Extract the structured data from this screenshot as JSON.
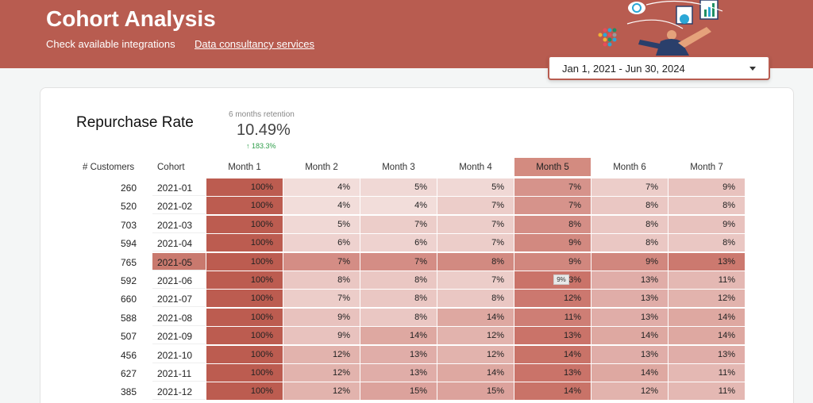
{
  "header": {
    "title": "Cohort Analysis",
    "links": [
      "Check available integrations",
      "Data consultancy services"
    ]
  },
  "date_range": {
    "value": "Jan 1, 2021 - Jun 30, 2024"
  },
  "kpi": {
    "title": "Repurchase Rate",
    "label": "6 months retention",
    "value": "10.49%",
    "delta": "183.3%"
  },
  "table": {
    "customers_header": "# Customers",
    "cohort_header": "Cohort",
    "months": [
      "Month 1",
      "Month 2",
      "Month 3",
      "Month 4",
      "Month 5",
      "Month 6",
      "Month 7"
    ],
    "highlight_column": 4,
    "highlight_row": 4,
    "rows": [
      {
        "customers": "260",
        "cohort": "2021-01",
        "values": [
          "100%",
          "4%",
          "5%",
          "5%",
          "7%",
          "7%",
          "9%"
        ]
      },
      {
        "customers": "520",
        "cohort": "2021-02",
        "values": [
          "100%",
          "4%",
          "4%",
          "7%",
          "7%",
          "8%",
          "8%"
        ]
      },
      {
        "customers": "703",
        "cohort": "2021-03",
        "values": [
          "100%",
          "5%",
          "7%",
          "7%",
          "8%",
          "8%",
          "9%"
        ]
      },
      {
        "customers": "594",
        "cohort": "2021-04",
        "values": [
          "100%",
          "6%",
          "6%",
          "7%",
          "9%",
          "8%",
          "8%"
        ]
      },
      {
        "customers": "765",
        "cohort": "2021-05",
        "values": [
          "100%",
          "7%",
          "7%",
          "8%",
          "9%",
          "9%",
          "13%"
        ]
      },
      {
        "customers": "592",
        "cohort": "2021-06",
        "values": [
          "100%",
          "8%",
          "8%",
          "7%",
          "13%",
          "13%",
          "11%"
        ]
      },
      {
        "customers": "660",
        "cohort": "2021-07",
        "values": [
          "100%",
          "7%",
          "8%",
          "8%",
          "12%",
          "13%",
          "12%"
        ]
      },
      {
        "customers": "588",
        "cohort": "2021-08",
        "values": [
          "100%",
          "9%",
          "8%",
          "14%",
          "11%",
          "13%",
          "14%"
        ]
      },
      {
        "customers": "507",
        "cohort": "2021-09",
        "values": [
          "100%",
          "9%",
          "14%",
          "12%",
          "13%",
          "14%",
          "14%"
        ]
      },
      {
        "customers": "456",
        "cohort": "2021-10",
        "values": [
          "100%",
          "12%",
          "13%",
          "12%",
          "14%",
          "13%",
          "13%"
        ]
      },
      {
        "customers": "627",
        "cohort": "2021-11",
        "values": [
          "100%",
          "12%",
          "13%",
          "14%",
          "13%",
          "14%",
          "11%"
        ]
      },
      {
        "customers": "385",
        "cohort": "2021-12",
        "values": [
          "100%",
          "12%",
          "15%",
          "15%",
          "14%",
          "12%",
          "11%"
        ]
      }
    ],
    "tooltip": "9%"
  },
  "colors": {
    "brand": "#b85c50",
    "delta_positive": "#2e9e4a"
  }
}
